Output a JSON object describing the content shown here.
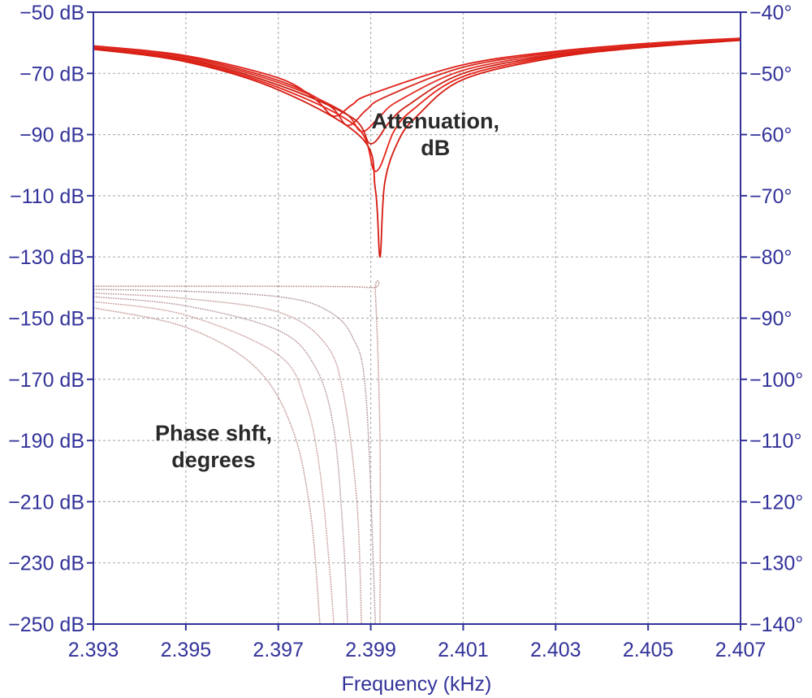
{
  "chart_data": {
    "type": "line",
    "title": "",
    "xlabel": "Frequency (kHz)",
    "xlim": [
      2.393,
      2.407
    ],
    "x_ticks": [
      "2.393",
      "2.395",
      "2.397",
      "2.399",
      "2.401",
      "2.403",
      "2.405",
      "2.407"
    ],
    "x_tick_values": [
      2.393,
      2.395,
      2.397,
      2.399,
      2.401,
      2.403,
      2.405,
      2.407
    ],
    "y_left": {
      "lim": [
        -250,
        -50
      ],
      "unit": "dB",
      "tick_values": [
        -50,
        -70,
        -90,
        -110,
        -130,
        -150,
        -170,
        -190,
        -210,
        -230,
        -250
      ],
      "ticks": [
        "−50 dB",
        "−70 dB",
        "−90 dB",
        "−110 dB",
        "−130 dB",
        "−150 dB",
        "−170 dB",
        "−190 dB",
        "−210 dB",
        "−230 dB",
        "−250 dB"
      ]
    },
    "y_right": {
      "lim": [
        -140,
        -40
      ],
      "unit": "degrees",
      "tick_values": [
        -40,
        -50,
        -60,
        -70,
        -80,
        -90,
        -100,
        -110,
        -120,
        -130,
        -140
      ],
      "ticks": [
        "−40°",
        "−50°",
        "−60°",
        "−70°",
        "−80°",
        "−90°",
        "−100°",
        "−110°",
        "−120°",
        "−130°",
        "−140°"
      ]
    },
    "grid": true,
    "annotations": [
      {
        "lines": [
          "Attenuation,",
          "dB"
        ],
        "x": 2.4004,
        "y": -88,
        "anchor": "middle"
      },
      {
        "lines": [
          "Phase shft,",
          "degrees"
        ],
        "x": 2.3956,
        "y": -190,
        "anchor": "middle"
      }
    ],
    "attenuation_series": [
      {
        "notch_freq": 2.3982,
        "notch_depth": -84,
        "values": [
          [
            2.393,
            -61.0
          ],
          [
            2.395,
            -64.2
          ],
          [
            2.397,
            -71.5
          ],
          [
            2.3978,
            -78.5
          ],
          [
            2.3982,
            -84.0
          ],
          [
            2.3986,
            -80.2
          ],
          [
            2.399,
            -76.8
          ],
          [
            2.401,
            -67.2
          ],
          [
            2.403,
            -62.8
          ],
          [
            2.405,
            -60.2
          ],
          [
            2.407,
            -58.5
          ]
        ]
      },
      {
        "notch_freq": 2.3985,
        "notch_depth": -87,
        "values": [
          [
            2.393,
            -61.3
          ],
          [
            2.395,
            -64.6
          ],
          [
            2.397,
            -72.3
          ],
          [
            2.3981,
            -80.5
          ],
          [
            2.3985,
            -87.0
          ],
          [
            2.3989,
            -82.0
          ],
          [
            2.3993,
            -77.8
          ],
          [
            2.401,
            -68.0
          ],
          [
            2.403,
            -63.2
          ],
          [
            2.405,
            -60.5
          ],
          [
            2.407,
            -58.7
          ]
        ]
      },
      {
        "notch_freq": 2.3988,
        "notch_depth": -89,
        "values": [
          [
            2.393,
            -61.5
          ],
          [
            2.395,
            -65.0
          ],
          [
            2.397,
            -73.0
          ],
          [
            2.3984,
            -82.5
          ],
          [
            2.3988,
            -89.0
          ],
          [
            2.3992,
            -84.0
          ],
          [
            2.3996,
            -79.0
          ],
          [
            2.401,
            -69.0
          ],
          [
            2.403,
            -63.6
          ],
          [
            2.405,
            -60.8
          ],
          [
            2.407,
            -58.9
          ]
        ]
      },
      {
        "notch_freq": 2.399,
        "notch_depth": -93,
        "values": [
          [
            2.393,
            -61.7
          ],
          [
            2.395,
            -65.4
          ],
          [
            2.397,
            -73.8
          ],
          [
            2.3986,
            -84.5
          ],
          [
            2.399,
            -93.0
          ],
          [
            2.3994,
            -86.0
          ],
          [
            2.3998,
            -80.5
          ],
          [
            2.401,
            -70.0
          ],
          [
            2.403,
            -64.0
          ],
          [
            2.405,
            -61.0
          ],
          [
            2.407,
            -59.0
          ]
        ]
      },
      {
        "notch_freq": 2.3991,
        "notch_depth": -102,
        "values": [
          [
            2.393,
            -61.9
          ],
          [
            2.395,
            -65.8
          ],
          [
            2.397,
            -74.6
          ],
          [
            2.3987,
            -87.5
          ],
          [
            2.3991,
            -102.0
          ],
          [
            2.3995,
            -89.0
          ],
          [
            2.3999,
            -82.0
          ],
          [
            2.401,
            -71.0
          ],
          [
            2.403,
            -64.4
          ],
          [
            2.405,
            -61.2
          ],
          [
            2.407,
            -59.1
          ]
        ]
      },
      {
        "notch_freq": 2.3992,
        "notch_depth": -130,
        "values": [
          [
            2.393,
            -62.1
          ],
          [
            2.395,
            -66.2
          ],
          [
            2.397,
            -75.4
          ],
          [
            2.3988,
            -91.0
          ],
          [
            2.3991,
            -108.0
          ],
          [
            2.3992,
            -130.0
          ],
          [
            2.3993,
            -106.0
          ],
          [
            2.3996,
            -92.0
          ],
          [
            2.4,
            -84.0
          ],
          [
            2.401,
            -72.0
          ],
          [
            2.403,
            -64.8
          ],
          [
            2.405,
            -61.4
          ],
          [
            2.407,
            -59.2
          ]
        ]
      }
    ],
    "phase_series": [
      {
        "values": [
          [
            2.393,
            -84.8
          ],
          [
            2.397,
            -84.8
          ],
          [
            2.399,
            -85.0
          ],
          [
            2.3991,
            -86.0
          ],
          [
            2.3992,
            -110.0
          ],
          [
            2.3992,
            -140.0
          ]
        ]
      },
      {
        "values": [
          [
            2.393,
            -85.3
          ],
          [
            2.395,
            -85.6
          ],
          [
            2.397,
            -86.5
          ],
          [
            2.398,
            -88.5
          ],
          [
            2.3986,
            -93.0
          ],
          [
            2.3989,
            -103.0
          ],
          [
            2.3991,
            -140.0
          ]
        ]
      },
      {
        "values": [
          [
            2.393,
            -85.9
          ],
          [
            2.395,
            -86.8
          ],
          [
            2.397,
            -89.0
          ],
          [
            2.398,
            -94.0
          ],
          [
            2.3984,
            -102.0
          ],
          [
            2.3987,
            -120.0
          ],
          [
            2.3988,
            -140.0
          ]
        ]
      },
      {
        "values": [
          [
            2.393,
            -86.5
          ],
          [
            2.395,
            -88.0
          ],
          [
            2.397,
            -92.0
          ],
          [
            2.3978,
            -98.0
          ],
          [
            2.3982,
            -108.0
          ],
          [
            2.3984,
            -125.0
          ],
          [
            2.3985,
            -140.0
          ]
        ]
      },
      {
        "values": [
          [
            2.393,
            -87.3
          ],
          [
            2.395,
            -89.5
          ],
          [
            2.397,
            -96.0
          ],
          [
            2.3976,
            -104.0
          ],
          [
            2.3979,
            -115.0
          ],
          [
            2.3981,
            -130.0
          ],
          [
            2.3982,
            -140.0
          ]
        ]
      },
      {
        "values": [
          [
            2.393,
            -88.3
          ],
          [
            2.395,
            -91.5
          ],
          [
            2.3965,
            -98.0
          ],
          [
            2.3973,
            -108.0
          ],
          [
            2.3977,
            -122.0
          ],
          [
            2.3979,
            -140.0
          ]
        ]
      }
    ],
    "colors": {
      "axis": "#33339a",
      "grid": "#b0b0b0",
      "attenuation": [
        "#e0201a",
        "#d8281e",
        "#e33026",
        "#cc1f14",
        "#e8261c",
        "#d41a10"
      ],
      "phase": [
        "#c59a9a",
        "#b8a0a0",
        "#c9a3a3",
        "#bfa0a8",
        "#cfa6a6",
        "#c7a0a0"
      ],
      "annotation": "#2a2a2a"
    }
  }
}
